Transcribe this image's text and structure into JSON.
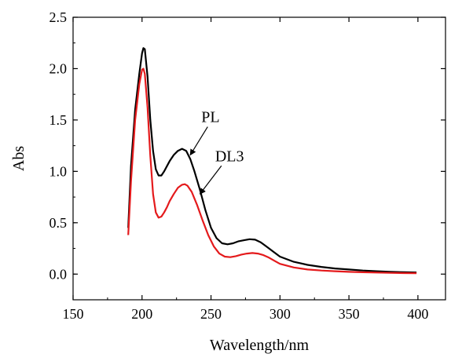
{
  "chart_data": {
    "type": "line",
    "xlabel": "Wavelength/nm",
    "ylabel": "Abs",
    "xlim": [
      150,
      420
    ],
    "ylim": [
      -0.25,
      2.5
    ],
    "xticks": [
      150,
      200,
      250,
      300,
      350,
      400
    ],
    "yticks": [
      0.0,
      0.5,
      1.0,
      1.5,
      2.0,
      2.5
    ],
    "xtick_labels": [
      "150",
      "200",
      "250",
      "300",
      "350",
      "400"
    ],
    "ytick_labels": [
      "0.0",
      "0.5",
      "1.0",
      "1.5",
      "2.0",
      "2.5"
    ],
    "grid": false,
    "series": [
      {
        "name": "PL",
        "color": "#000000",
        "points": [
          [
            190,
            0.45
          ],
          [
            192,
            1.05
          ],
          [
            195,
            1.6
          ],
          [
            198,
            1.95
          ],
          [
            200,
            2.15
          ],
          [
            201,
            2.2
          ],
          [
            202,
            2.19
          ],
          [
            204,
            1.92
          ],
          [
            206,
            1.5
          ],
          [
            208,
            1.2
          ],
          [
            210,
            1.02
          ],
          [
            212,
            0.96
          ],
          [
            214,
            0.96
          ],
          [
            216,
            1.0
          ],
          [
            218,
            1.05
          ],
          [
            220,
            1.1
          ],
          [
            223,
            1.16
          ],
          [
            226,
            1.2
          ],
          [
            229,
            1.22
          ],
          [
            232,
            1.2
          ],
          [
            235,
            1.12
          ],
          [
            238,
            1.0
          ],
          [
            242,
            0.82
          ],
          [
            246,
            0.62
          ],
          [
            250,
            0.45
          ],
          [
            254,
            0.35
          ],
          [
            258,
            0.3
          ],
          [
            262,
            0.29
          ],
          [
            266,
            0.3
          ],
          [
            270,
            0.32
          ],
          [
            274,
            0.33
          ],
          [
            278,
            0.34
          ],
          [
            282,
            0.335
          ],
          [
            286,
            0.31
          ],
          [
            290,
            0.27
          ],
          [
            295,
            0.22
          ],
          [
            300,
            0.17
          ],
          [
            310,
            0.12
          ],
          [
            320,
            0.09
          ],
          [
            330,
            0.07
          ],
          [
            340,
            0.055
          ],
          [
            350,
            0.045
          ],
          [
            360,
            0.035
          ],
          [
            370,
            0.028
          ],
          [
            380,
            0.022
          ],
          [
            390,
            0.018
          ],
          [
            399,
            0.016
          ]
        ]
      },
      {
        "name": "DL3",
        "color": "#e41a1c",
        "points": [
          [
            190,
            0.38
          ],
          [
            192,
            0.9
          ],
          [
            195,
            1.5
          ],
          [
            198,
            1.85
          ],
          [
            200,
            1.99
          ],
          [
            201,
            2.0
          ],
          [
            202,
            1.95
          ],
          [
            204,
            1.62
          ],
          [
            206,
            1.15
          ],
          [
            208,
            0.78
          ],
          [
            210,
            0.6
          ],
          [
            212,
            0.55
          ],
          [
            214,
            0.56
          ],
          [
            216,
            0.6
          ],
          [
            218,
            0.65
          ],
          [
            220,
            0.71
          ],
          [
            223,
            0.78
          ],
          [
            226,
            0.84
          ],
          [
            229,
            0.87
          ],
          [
            231,
            0.875
          ],
          [
            233,
            0.86
          ],
          [
            236,
            0.8
          ],
          [
            240,
            0.67
          ],
          [
            244,
            0.52
          ],
          [
            248,
            0.38
          ],
          [
            252,
            0.27
          ],
          [
            256,
            0.2
          ],
          [
            260,
            0.17
          ],
          [
            264,
            0.165
          ],
          [
            268,
            0.175
          ],
          [
            272,
            0.19
          ],
          [
            276,
            0.2
          ],
          [
            280,
            0.205
          ],
          [
            284,
            0.2
          ],
          [
            288,
            0.185
          ],
          [
            292,
            0.16
          ],
          [
            296,
            0.13
          ],
          [
            300,
            0.1
          ],
          [
            310,
            0.065
          ],
          [
            320,
            0.045
          ],
          [
            330,
            0.035
          ],
          [
            340,
            0.028
          ],
          [
            350,
            0.022
          ],
          [
            360,
            0.018
          ],
          [
            370,
            0.015
          ],
          [
            380,
            0.012
          ],
          [
            390,
            0.01
          ],
          [
            399,
            0.009
          ]
        ]
      }
    ],
    "annotations": [
      {
        "text": "PL",
        "x": 243,
        "y": 1.48,
        "arrow_to": [
          235,
          1.16
        ]
      },
      {
        "text": "DL3",
        "x": 253,
        "y": 1.1,
        "arrow_to": [
          242,
          0.78
        ]
      }
    ]
  }
}
